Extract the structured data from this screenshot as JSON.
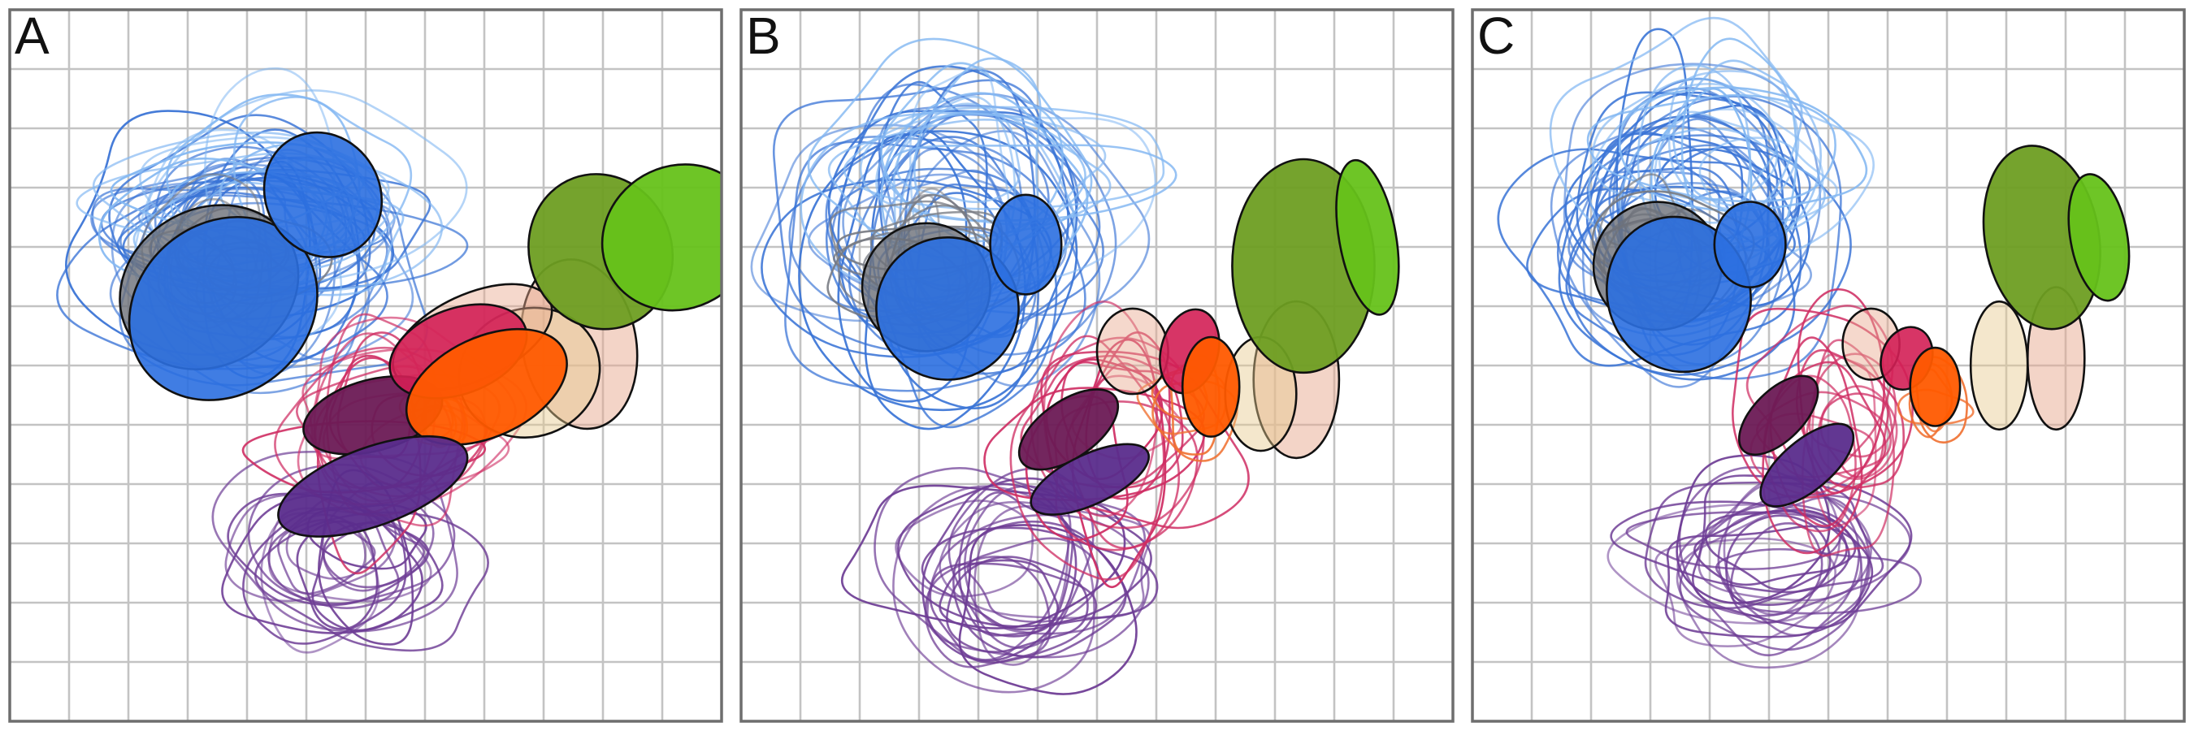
{
  "panels": [
    {
      "label": "A",
      "clusters": [
        {
          "name": "blue",
          "color": "#2b6fe0",
          "loop_color": "#3a74d6"
        },
        {
          "name": "gray",
          "color": "#6b6f78",
          "loop_color": "#777a82"
        },
        {
          "name": "light-blue",
          "color": "#5aa0ee",
          "loop_color": "#84b8f2"
        },
        {
          "name": "violet",
          "color": "#5a2c8c",
          "loop_color": "#6e3d95"
        },
        {
          "name": "crimson",
          "color": "#d31f55",
          "loop_color": "#cf2d63"
        },
        {
          "name": "orange",
          "color": "#ff5a00",
          "loop_color": "#f07030"
        },
        {
          "name": "olive-green",
          "color": "#6e9e22",
          "loop_color": "#6e9e22"
        },
        {
          "name": "lime-green",
          "color": "#66c21a",
          "loop_color": "#66c21a"
        },
        {
          "name": "peach",
          "color": "#e8a98f",
          "loop_color": "#e8a98f"
        },
        {
          "name": "sand",
          "color": "#e6c98f",
          "loop_color": "#e6c98f"
        },
        {
          "name": "plum",
          "color": "#6b1a55",
          "loop_color": "#7a2a60"
        }
      ]
    },
    {
      "label": "B"
    },
    {
      "label": "C"
    }
  ]
}
